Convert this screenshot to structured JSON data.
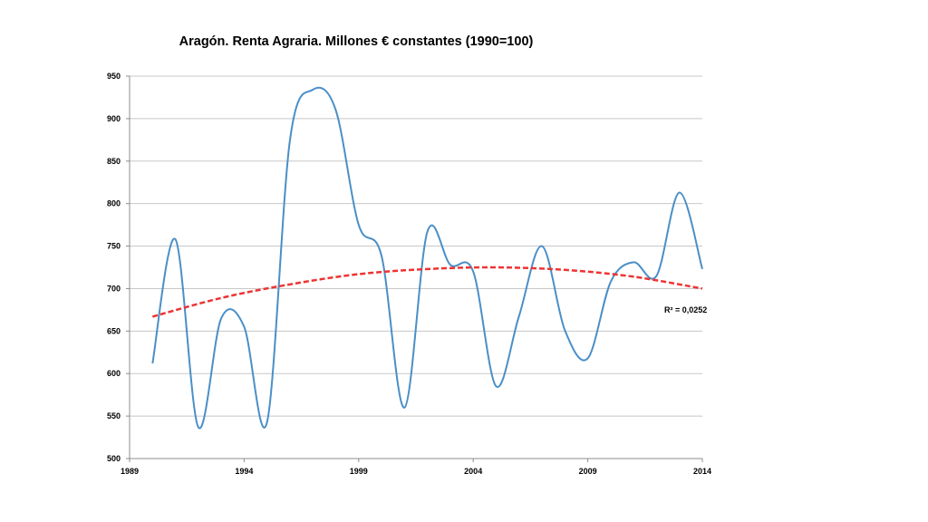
{
  "chart_data": {
    "type": "line",
    "title": "Aragón. Renta Agraria. Millones € constantes (1990=100)",
    "xlabel": "",
    "ylabel": "",
    "xlim": [
      1989,
      2014
    ],
    "ylim": [
      500,
      950
    ],
    "x_ticks": [
      "1989",
      "1994",
      "1999",
      "2004",
      "2009",
      "2014"
    ],
    "y_ticks": [
      "500",
      "550",
      "600",
      "650",
      "700",
      "750",
      "800",
      "850",
      "900",
      "950"
    ],
    "grid": "horizontal",
    "colors": {
      "series": "#4a8fc7",
      "trend": "#ee3333",
      "grid": "#c8c8c8",
      "axis": "#8c8c8c"
    },
    "series": [
      {
        "x": [
          1990,
          1991,
          1992,
          1993,
          1994,
          1995,
          1996,
          1997,
          1998,
          1999,
          2000,
          2001,
          2002,
          2003,
          2004,
          2005,
          2006,
          2007,
          2008,
          2009,
          2010,
          2011,
          2012,
          2013,
          2014
        ],
        "values": [
          612,
          758,
          537,
          665,
          655,
          543,
          875,
          934,
          910,
          775,
          738,
          560,
          767,
          728,
          720,
          585,
          668,
          750,
          651,
          618,
          708,
          731,
          715,
          813,
          723
        ]
      }
    ],
    "trendline": {
      "type": "polynomial",
      "style": "dashed",
      "x": [
        1990,
        1993,
        1996,
        1999,
        2002,
        2005,
        2008,
        2011,
        2014
      ],
      "values": [
        667,
        689,
        705,
        717,
        723,
        725,
        722,
        714,
        700
      ]
    },
    "annotation": "R² = 0,0252"
  }
}
